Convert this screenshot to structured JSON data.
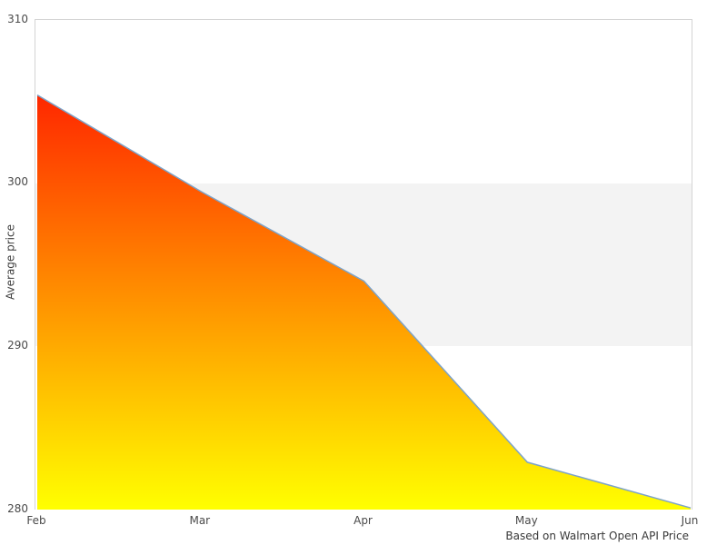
{
  "chart_data": {
    "type": "area",
    "x": [
      "Feb",
      "Mar",
      "Apr",
      "May",
      "Jun"
    ],
    "values": [
      305.4,
      299.5,
      294.0,
      282.9,
      280.1
    ],
    "title": "",
    "xlabel": "",
    "ylabel": "Average price",
    "ylim": [
      280,
      310
    ],
    "yticks": [
      310,
      300,
      290,
      280
    ],
    "xticklabels": [
      "Feb",
      "Mar",
      "Apr",
      "May",
      "Jun"
    ],
    "caption": "Based on Walmart Open API Price",
    "band": {
      "from": 290,
      "to": 300
    },
    "grid": false,
    "legend": false,
    "colors": {
      "gradient_top": "#ff0000",
      "gradient_bottom": "#ffff00",
      "line": "#7da3c8",
      "band": "#f3f3f3",
      "spine": "#d4d4d4",
      "tick_text": "#4a4a4a",
      "label_text": "#3f3f3f"
    }
  }
}
